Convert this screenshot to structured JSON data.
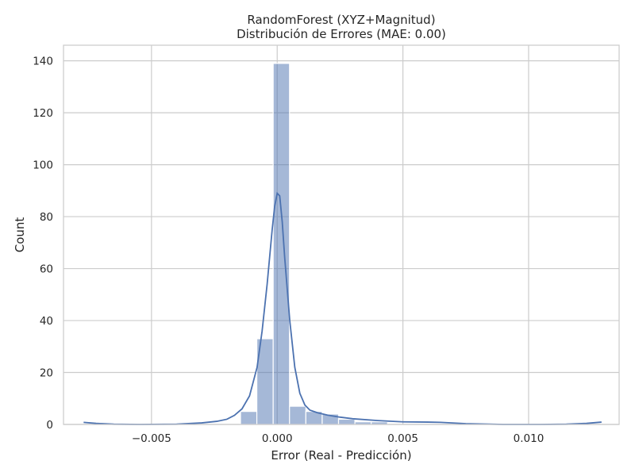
{
  "chart_data": {
    "type": "bar",
    "title": "RandomForest (XYZ+Magnitud)",
    "subtitle": "Distribución de Errores (MAE: 0.00)",
    "xlabel": "Error (Real - Predicción)",
    "ylabel": "Count",
    "xlim": [
      -0.0085,
      0.0136
    ],
    "ylim": [
      0,
      146
    ],
    "grid": true,
    "x_ticks": [
      {
        "value": -0.005,
        "label": "−0.005"
      },
      {
        "value": 0.0,
        "label": "0.000"
      },
      {
        "value": 0.005,
        "label": "0.005"
      },
      {
        "value": 0.01,
        "label": "0.010"
      }
    ],
    "y_ticks": [
      {
        "value": 0,
        "label": "0"
      },
      {
        "value": 20,
        "label": "20"
      },
      {
        "value": 40,
        "label": "40"
      },
      {
        "value": 60,
        "label": "60"
      },
      {
        "value": 80,
        "label": "80"
      },
      {
        "value": 100,
        "label": "100"
      },
      {
        "value": 120,
        "label": "120"
      },
      {
        "value": 140,
        "label": "140"
      }
    ],
    "bins": [
      {
        "x0": -0.00146,
        "x1": -0.00081,
        "count": 5
      },
      {
        "x0": -0.00081,
        "x1": -0.00016,
        "count": 33
      },
      {
        "x0": -0.00016,
        "x1": 0.00049,
        "count": 139
      },
      {
        "x0": 0.00049,
        "x1": 0.00114,
        "count": 7
      },
      {
        "x0": 0.00114,
        "x1": 0.00179,
        "count": 5
      },
      {
        "x0": 0.00179,
        "x1": 0.00244,
        "count": 4
      },
      {
        "x0": 0.00244,
        "x1": 0.00309,
        "count": 2
      },
      {
        "x0": 0.00309,
        "x1": 0.00374,
        "count": 1
      },
      {
        "x0": 0.00374,
        "x1": 0.00439,
        "count": 1
      }
    ],
    "kde": [
      [
        -0.0077,
        0.8
      ],
      [
        -0.0072,
        0.4
      ],
      [
        -0.0065,
        0.1
      ],
      [
        -0.0055,
        0.0
      ],
      [
        -0.004,
        0.1
      ],
      [
        -0.003,
        0.6
      ],
      [
        -0.0024,
        1.2
      ],
      [
        -0.002,
        2.0
      ],
      [
        -0.0017,
        3.5
      ],
      [
        -0.0014,
        6.0
      ],
      [
        -0.0011,
        11.0
      ],
      [
        -0.0008,
        22.0
      ],
      [
        -0.0006,
        36.0
      ],
      [
        -0.0004,
        54.0
      ],
      [
        -0.0002,
        75.0
      ],
      [
        -0.0001,
        84.0
      ],
      [
        0.0,
        89.0
      ],
      [
        0.0001,
        88.0
      ],
      [
        0.0002,
        78.0
      ],
      [
        0.0003,
        64.0
      ],
      [
        0.0005,
        40.0
      ],
      [
        0.0007,
        22.0
      ],
      [
        0.0009,
        12.0
      ],
      [
        0.0011,
        7.5
      ],
      [
        0.0013,
        5.5
      ],
      [
        0.0016,
        4.5
      ],
      [
        0.002,
        3.6
      ],
      [
        0.0025,
        2.8
      ],
      [
        0.003,
        2.2
      ],
      [
        0.004,
        1.5
      ],
      [
        0.005,
        1.0
      ],
      [
        0.006,
        0.9
      ],
      [
        0.0065,
        0.8
      ],
      [
        0.0075,
        0.3
      ],
      [
        0.009,
        0.0
      ],
      [
        0.0105,
        0.0
      ],
      [
        0.0115,
        0.1
      ],
      [
        0.0123,
        0.4
      ],
      [
        0.0129,
        0.9
      ]
    ],
    "colors": {
      "bar_fill": "#4c72b0",
      "kde_line": "#4c72b0",
      "grid": "#cccccc",
      "text": "#262626"
    }
  }
}
